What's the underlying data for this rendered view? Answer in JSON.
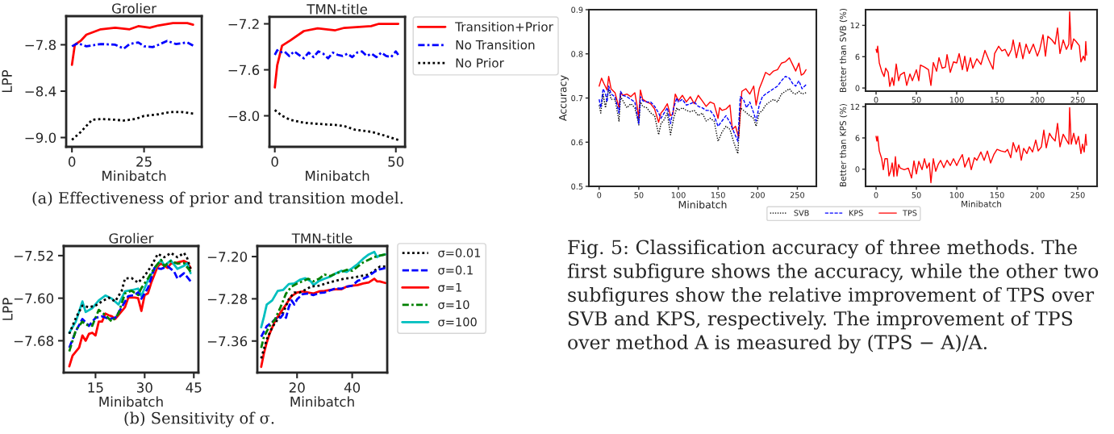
{
  "chart_data": [
    {
      "type": "line",
      "title": "Grolier",
      "xlabel": "Minibatch",
      "ylabel": "LPP",
      "xlim": [
        -2,
        45
      ],
      "ylim": [
        -9.12,
        -7.43
      ],
      "xticks": [
        0,
        25
      ],
      "yticks": [
        {
          "value": -7.8,
          "label": "−7.8"
        },
        {
          "value": -8.4,
          "label": "−8.4"
        },
        {
          "value": -9.0,
          "label": "−9.0"
        }
      ],
      "annotations": [
        "(a) Effectiveness of prior and transition model."
      ],
      "series": [
        {
          "color": "#ff0000",
          "line_style": "solid",
          "x": [
            0,
            1,
            3,
            5,
            10,
            15,
            20,
            23,
            27,
            30,
            35,
            40,
            42
          ],
          "values": [
            -8.06,
            -7.8,
            -7.75,
            -7.67,
            -7.6,
            -7.58,
            -7.6,
            -7.56,
            -7.58,
            -7.55,
            -7.52,
            -7.52,
            -7.54
          ]
        },
        {
          "color": "#0000ff",
          "line_style": "dashdot",
          "x": [
            0,
            2,
            5,
            10,
            15,
            18,
            20,
            23,
            25,
            28,
            30,
            33,
            36,
            40,
            42
          ],
          "values": [
            -7.82,
            -7.78,
            -7.82,
            -7.79,
            -7.8,
            -7.85,
            -7.79,
            -7.77,
            -7.82,
            -7.83,
            -7.8,
            -7.75,
            -7.79,
            -7.77,
            -7.81
          ]
        },
        {
          "color": "#000000",
          "line_style": "dotted",
          "x": [
            0,
            3,
            7,
            10,
            15,
            18,
            22,
            25,
            30,
            34,
            38,
            42
          ],
          "values": [
            -9.03,
            -8.93,
            -8.77,
            -8.76,
            -8.77,
            -8.78,
            -8.76,
            -8.72,
            -8.7,
            -8.67,
            -8.67,
            -8.69
          ]
        }
      ]
    },
    {
      "type": "line",
      "title": "TMN-title",
      "xlabel": "Minibatch",
      "xlim": [
        -2.2,
        53.8
      ],
      "ylim": [
        -8.27,
        -7.14
      ],
      "xticks": [
        0,
        50
      ],
      "yticks": [
        {
          "value": -7.2,
          "label": "−7.2"
        },
        {
          "value": -7.6,
          "label": "−7.6"
        },
        {
          "value": -8.0,
          "label": "−8.0"
        }
      ],
      "legend": "right",
      "series": [
        {
          "name": "Transition+Prior",
          "color": "#ff0000",
          "line_style": "solid",
          "x": [
            0,
            1,
            3,
            6.4,
            12,
            17.7,
            25,
            28.7,
            39.8,
            43,
            51
          ],
          "values": [
            -7.754,
            -7.56,
            -7.39,
            -7.345,
            -7.263,
            -7.24,
            -7.256,
            -7.235,
            -7.22,
            -7.2,
            -7.2
          ]
        },
        {
          "name": "No Transition",
          "color": "#0000ff",
          "line_style": "dashdot",
          "x": [
            0,
            1,
            2,
            4,
            6,
            8,
            10,
            12,
            14,
            16,
            18,
            20,
            22,
            24,
            26,
            28,
            30,
            32,
            34,
            36,
            38,
            40,
            42,
            44,
            46,
            48,
            50,
            51
          ],
          "values": [
            -7.47,
            -7.43,
            -7.45,
            -7.44,
            -7.48,
            -7.44,
            -7.47,
            -7.5,
            -7.45,
            -7.49,
            -7.44,
            -7.46,
            -7.5,
            -7.45,
            -7.47,
            -7.48,
            -7.46,
            -7.49,
            -7.45,
            -7.44,
            -7.48,
            -7.46,
            -7.49,
            -7.45,
            -7.48,
            -7.49,
            -7.44,
            -7.47
          ]
        },
        {
          "name": "No Prior",
          "color": "#000000",
          "line_style": "dotted",
          "x": [
            0,
            3,
            6.4,
            12,
            17.7,
            25,
            28.7,
            33,
            40,
            45,
            51
          ],
          "values": [
            -7.95,
            -8.0,
            -8.035,
            -8.06,
            -8.07,
            -8.08,
            -8.09,
            -8.12,
            -8.14,
            -8.17,
            -8.21
          ]
        }
      ]
    },
    {
      "type": "line",
      "title": "Grolier",
      "xlabel": "Minibatch",
      "ylabel": "LPP",
      "xlim": [
        5.3,
        46.4
      ],
      "ylim": [
        -7.74,
        -7.502
      ],
      "xticks": [
        15,
        30,
        45
      ],
      "yticks": [
        {
          "value": -7.52,
          "label": "−7.52"
        },
        {
          "value": -7.6,
          "label": "−7.60"
        },
        {
          "value": -7.68,
          "label": "−7.68"
        }
      ],
      "annotations": [
        "(b) Sensitivity of σ."
      ],
      "series": [
        {
          "color": "#000000",
          "line_style": "dotted",
          "x": [
            7,
            9,
            11,
            13,
            15,
            17,
            19,
            21,
            23,
            24,
            26,
            28,
            30,
            32,
            34,
            36,
            38,
            40,
            42,
            43,
            44
          ],
          "values": [
            -7.667,
            -7.637,
            -7.614,
            -7.617,
            -7.614,
            -7.606,
            -7.599,
            -7.606,
            -7.586,
            -7.563,
            -7.562,
            -7.571,
            -7.558,
            -7.54,
            -7.517,
            -7.523,
            -7.515,
            -7.523,
            -7.515,
            -7.525,
            -7.545
          ]
        },
        {
          "color": "#0000ff",
          "line_style": "dashed",
          "x": [
            7,
            9,
            11,
            13,
            15,
            17,
            19,
            21,
            23,
            25,
            27,
            28,
            29,
            31,
            33,
            35,
            37,
            39,
            40,
            42,
            44
          ],
          "values": [
            -7.693,
            -7.662,
            -7.639,
            -7.652,
            -7.637,
            -7.634,
            -7.639,
            -7.637,
            -7.617,
            -7.596,
            -7.594,
            -7.589,
            -7.601,
            -7.581,
            -7.543,
            -7.545,
            -7.54,
            -7.55,
            -7.563,
            -7.553,
            -7.568
          ]
        },
        {
          "color": "#ff0000",
          "line_style": "solid",
          "x": [
            7,
            8,
            10,
            11,
            12,
            13,
            14,
            15,
            16,
            17,
            18,
            19,
            20,
            21,
            22,
            24,
            25,
            27,
            28,
            29,
            30,
            31,
            32,
            34,
            35,
            37,
            38,
            40,
            42,
            43,
            44
          ],
          "values": [
            -7.728,
            -7.708,
            -7.693,
            -7.67,
            -7.68,
            -7.667,
            -7.665,
            -7.67,
            -7.644,
            -7.644,
            -7.629,
            -7.632,
            -7.634,
            -7.639,
            -7.632,
            -7.617,
            -7.599,
            -7.599,
            -7.6,
            -7.624,
            -7.594,
            -7.591,
            -7.571,
            -7.54,
            -7.535,
            -7.543,
            -7.535,
            -7.533,
            -7.53,
            -7.533,
            -7.543
          ]
        },
        {
          "color": "#008000",
          "line_style": "dashdot",
          "x": [
            7,
            9,
            11,
            12,
            14,
            16,
            18,
            20,
            22,
            24,
            26,
            28,
            29,
            31,
            33,
            35,
            36,
            38,
            40,
            42,
            44
          ],
          "values": [
            -7.7,
            -7.66,
            -7.644,
            -7.65,
            -7.652,
            -7.622,
            -7.632,
            -7.644,
            -7.629,
            -7.591,
            -7.586,
            -7.594,
            -7.581,
            -7.563,
            -7.543,
            -7.528,
            -7.54,
            -7.53,
            -7.535,
            -7.534,
            -7.55
          ]
        },
        {
          "color": "#00bfbf",
          "line_style": "solid",
          "x": [
            7,
            9,
            11,
            12,
            14,
            16,
            18,
            20,
            22,
            24,
            26,
            28,
            29,
            31,
            33,
            35,
            36,
            38,
            40,
            42,
            43,
            44
          ],
          "values": [
            -7.665,
            -7.644,
            -7.606,
            -7.626,
            -7.619,
            -7.604,
            -7.595,
            -7.601,
            -7.612,
            -7.587,
            -7.585,
            -7.582,
            -7.596,
            -7.566,
            -7.545,
            -7.528,
            -7.539,
            -7.529,
            -7.545,
            -7.539,
            -7.534,
            -7.553
          ]
        }
      ]
    },
    {
      "type": "line",
      "title": "TMN-title",
      "xlabel": "Minibatch",
      "xlim": [
        5.6,
        52.7
      ],
      "ylim": [
        -7.42,
        -7.18
      ],
      "xticks": [
        20,
        40
      ],
      "yticks": [
        {
          "value": -7.2,
          "label": "−7.20"
        },
        {
          "value": -7.28,
          "label": "−7.28"
        },
        {
          "value": -7.36,
          "label": "−7.36"
        }
      ],
      "legend": "right",
      "series": [
        {
          "name": "σ=0.01",
          "color": "#000000",
          "line_style": "dotted",
          "x": [
            7,
            9,
            11,
            13,
            15,
            17,
            19,
            21,
            23,
            25,
            28,
            31,
            34,
            37,
            40,
            43,
            46,
            48,
            50,
            52
          ],
          "values": [
            -7.393,
            -7.357,
            -7.334,
            -7.319,
            -7.306,
            -7.281,
            -7.268,
            -7.268,
            -7.263,
            -7.257,
            -7.255,
            -7.25,
            -7.246,
            -7.242,
            -7.24,
            -7.237,
            -7.234,
            -7.227,
            -7.219,
            -7.219
          ]
        },
        {
          "name": "σ=0.1",
          "color": "#0000ff",
          "line_style": "dashed",
          "x": [
            7,
            9,
            11,
            13,
            14,
            15,
            16,
            17,
            18,
            19,
            20,
            22,
            24,
            26,
            28,
            30,
            32,
            34,
            36,
            38,
            40,
            42,
            44,
            46,
            48,
            50,
            52
          ],
          "values": [
            -7.352,
            -7.332,
            -7.324,
            -7.314,
            -7.316,
            -7.309,
            -7.316,
            -7.296,
            -7.283,
            -7.291,
            -7.281,
            -7.271,
            -7.27,
            -7.273,
            -7.269,
            -7.268,
            -7.264,
            -7.26,
            -7.261,
            -7.257,
            -7.255,
            -7.246,
            -7.242,
            -7.237,
            -7.229,
            -7.224,
            -7.222
          ]
        },
        {
          "name": "σ=1",
          "color": "#ff0000",
          "line_style": "solid",
          "x": [
            7,
            8,
            9,
            10,
            12,
            14,
            16,
            18,
            20,
            22,
            24,
            26,
            28,
            30,
            32,
            34,
            36,
            38,
            40,
            42,
            44,
            46,
            48,
            49,
            50,
            52
          ],
          "values": [
            -7.409,
            -7.383,
            -7.363,
            -7.347,
            -7.322,
            -7.306,
            -7.291,
            -7.275,
            -7.268,
            -7.266,
            -7.268,
            -7.27,
            -7.266,
            -7.265,
            -7.263,
            -7.262,
            -7.262,
            -7.257,
            -7.255,
            -7.254,
            -7.251,
            -7.249,
            -7.242,
            -7.247,
            -7.247,
            -7.25
          ]
        },
        {
          "name": "σ=10",
          "color": "#008000",
          "line_style": "dashdot",
          "x": [
            7,
            8,
            10,
            12,
            14,
            16,
            18,
            20,
            22,
            24,
            26,
            28,
            30,
            32,
            34,
            36,
            38,
            40,
            42,
            44,
            46,
            48,
            50,
            52
          ],
          "values": [
            -7.373,
            -7.352,
            -7.332,
            -7.319,
            -7.296,
            -7.27,
            -7.257,
            -7.251,
            -7.247,
            -7.242,
            -7.247,
            -7.242,
            -7.234,
            -7.237,
            -7.232,
            -7.229,
            -7.225,
            -7.227,
            -7.219,
            -7.211,
            -7.206,
            -7.201,
            -7.198,
            -7.196
          ]
        },
        {
          "name": "σ=100",
          "color": "#00bfbf",
          "line_style": "solid",
          "x": [
            7,
            8,
            9,
            11,
            13,
            15,
            17,
            19,
            21,
            23,
            25,
            26,
            28,
            30,
            32,
            34,
            36,
            38,
            40,
            42,
            44,
            46,
            48,
            49,
            50,
            52
          ],
          "values": [
            -7.334,
            -7.314,
            -7.291,
            -7.283,
            -7.265,
            -7.263,
            -7.252,
            -7.251,
            -7.244,
            -7.241,
            -7.247,
            -7.254,
            -7.246,
            -7.242,
            -7.238,
            -7.232,
            -7.227,
            -7.229,
            -7.222,
            -7.214,
            -7.204,
            -7.196,
            -7.191,
            -7.201,
            -7.198,
            -7.196
          ]
        }
      ]
    },
    {
      "type": "line",
      "xlabel": "Minibatch",
      "ylabel": "Accuracy",
      "xlim": [
        -13,
        274
      ],
      "ylim": [
        0.5,
        0.9
      ],
      "xticks": [
        0,
        50,
        100,
        150,
        200,
        250
      ],
      "yticks": [
        0.5,
        0.6,
        0.7,
        0.8,
        0.9
      ],
      "legend": "bottom",
      "annotations": [
        "Fig. 5: Classification accuracy of three methods. The first subfigure shows the accuracy, while the other two subfigures show the relative improvement of TPS over SVB and KPS, respectively. The improvement of TPS over method A is measured by (TPS − A)/A."
      ],
      "series": [
        {
          "name": "SVB",
          "color": "#000000",
          "line_style": "dotted",
          "x": [
            0,
            2,
            5,
            8,
            10,
            12,
            15,
            20,
            25,
            27,
            30,
            35,
            40,
            45,
            50,
            52,
            55,
            60,
            65,
            70,
            75,
            78,
            82,
            86,
            90,
            94,
            98,
            100,
            105,
            110,
            115,
            120,
            125,
            130,
            135,
            140,
            145,
            150,
            155,
            160,
            165,
            170,
            175,
            178,
            182,
            186,
            190,
            195,
            198,
            202,
            206,
            210,
            215,
            220,
            225,
            230,
            235,
            240,
            244,
            248,
            252,
            256,
            261
          ],
          "values": [
            0.684,
            0.666,
            0.709,
            0.678,
            0.703,
            0.721,
            0.697,
            0.697,
            0.648,
            0.703,
            0.694,
            0.678,
            0.687,
            0.678,
            0.639,
            0.691,
            0.681,
            0.678,
            0.666,
            0.66,
            0.617,
            0.642,
            0.651,
            0.666,
            0.617,
            0.654,
            0.678,
            0.672,
            0.678,
            0.672,
            0.669,
            0.672,
            0.66,
            0.666,
            0.648,
            0.654,
            0.648,
            0.602,
            0.623,
            0.636,
            0.629,
            0.599,
            0.574,
            0.678,
            0.672,
            0.666,
            0.66,
            0.654,
            0.636,
            0.666,
            0.672,
            0.684,
            0.691,
            0.697,
            0.691,
            0.709,
            0.715,
            0.721,
            0.712,
            0.709,
            0.715,
            0.709,
            0.712
          ]
        },
        {
          "name": "KPS",
          "color": "#0000ff",
          "line_style": "dashed",
          "x": [
            0,
            2,
            5,
            8,
            10,
            12,
            15,
            20,
            25,
            27,
            30,
            35,
            40,
            45,
            50,
            52,
            55,
            60,
            65,
            70,
            75,
            78,
            82,
            86,
            90,
            94,
            98,
            100,
            105,
            110,
            115,
            120,
            125,
            130,
            135,
            140,
            145,
            150,
            155,
            160,
            165,
            170,
            175,
            178,
            182,
            186,
            190,
            195,
            198,
            202,
            206,
            210,
            215,
            220,
            225,
            230,
            235,
            240,
            244,
            248,
            252,
            256,
            261
          ],
          "values": [
            0.697,
            0.678,
            0.721,
            0.709,
            0.691,
            0.727,
            0.709,
            0.703,
            0.666,
            0.715,
            0.706,
            0.703,
            0.697,
            0.691,
            0.642,
            0.703,
            0.694,
            0.691,
            0.691,
            0.681,
            0.666,
            0.654,
            0.666,
            0.678,
            0.642,
            0.678,
            0.7,
            0.691,
            0.697,
            0.684,
            0.687,
            0.691,
            0.681,
            0.678,
            0.672,
            0.672,
            0.66,
            0.636,
            0.648,
            0.66,
            0.645,
            0.623,
            0.602,
            0.703,
            0.697,
            0.678,
            0.691,
            0.666,
            0.648,
            0.684,
            0.703,
            0.709,
            0.715,
            0.721,
            0.727,
            0.739,
            0.749,
            0.745,
            0.733,
            0.727,
            0.739,
            0.721,
            0.73
          ]
        },
        {
          "name": "TPS",
          "color": "#ff0000",
          "line_style": "solid",
          "x": [
            0,
            3,
            6,
            10,
            12,
            15,
            20,
            25,
            27,
            30,
            35,
            40,
            45,
            48,
            50,
            52,
            55,
            60,
            65,
            70,
            75,
            78,
            82,
            86,
            90,
            93,
            96,
            100,
            105,
            110,
            115,
            120,
            125,
            130,
            135,
            140,
            145,
            150,
            152,
            155,
            160,
            165,
            168,
            172,
            176,
            180,
            185,
            190,
            195,
            198,
            202,
            206,
            210,
            215,
            220,
            225,
            230,
            235,
            240,
            244,
            248,
            252,
            255,
            258,
            261
          ],
          "values": [
            0.727,
            0.745,
            0.733,
            0.718,
            0.749,
            0.721,
            0.712,
            0.678,
            0.712,
            0.706,
            0.709,
            0.703,
            0.712,
            0.681,
            0.654,
            0.718,
            0.697,
            0.691,
            0.687,
            0.675,
            0.645,
            0.666,
            0.675,
            0.687,
            0.66,
            0.663,
            0.709,
            0.694,
            0.706,
            0.691,
            0.703,
            0.687,
            0.706,
            0.694,
            0.681,
            0.691,
            0.687,
            0.654,
            0.678,
            0.672,
            0.675,
            0.684,
            0.629,
            0.636,
            0.611,
            0.715,
            0.721,
            0.709,
            0.727,
            0.684,
            0.721,
            0.739,
            0.758,
            0.752,
            0.761,
            0.764,
            0.779,
            0.782,
            0.791,
            0.776,
            0.761,
            0.779,
            0.752,
            0.755,
            0.764
          ]
        }
      ]
    },
    {
      "type": "line",
      "ylabel": "Better than SVB (%)",
      "xlim": [
        -13,
        274
      ],
      "ylim": [
        -0.6,
        15
      ],
      "xticks": [
        0,
        50,
        100,
        150,
        200,
        250
      ],
      "yticks": [
        0,
        6,
        12
      ],
      "series": [
        {
          "color": "#ff0000",
          "line_style": "solid",
          "x": [
            0,
            1,
            2,
            4,
            7,
            10,
            12,
            15,
            17,
            20,
            22,
            25,
            28,
            30,
            35,
            38,
            42,
            45,
            50,
            53,
            55,
            60,
            65,
            68,
            71,
            75,
            78,
            82,
            86,
            88,
            92,
            96,
            100,
            103,
            107,
            110,
            113,
            117,
            120,
            125,
            130,
            135,
            140,
            145,
            147,
            152,
            156,
            160,
            164,
            168,
            170,
            174,
            178,
            182,
            186,
            190,
            195,
            200,
            203,
            207,
            210,
            213,
            218,
            222,
            225,
            228,
            232,
            236,
            239,
            240,
            242,
            245,
            248,
            252,
            254,
            257,
            259,
            260,
            261
          ],
          "values": [
            7.4,
            6.8,
            8.0,
            4.8,
            3.2,
            2.2,
            3.8,
            3.0,
            0.3,
            2.0,
            0.5,
            4.6,
            1.4,
            2.5,
            3.0,
            0.5,
            2.7,
            1.4,
            3.5,
            1.4,
            4.4,
            4.0,
            3.5,
            0.5,
            4.9,
            3.2,
            5.8,
            3.8,
            4.0,
            6.4,
            3.0,
            5.0,
            4.8,
            6.6,
            3.5,
            6.1,
            3.2,
            5.8,
            3.8,
            5.6,
            4.5,
            7.2,
            5.3,
            3.6,
            6.6,
            8.0,
            7.1,
            7.4,
            6.1,
            7.4,
            9.2,
            5.8,
            8.7,
            5.6,
            8.4,
            6.6,
            8.4,
            6.1,
            7.4,
            10.2,
            6.1,
            9.9,
            9.2,
            8.4,
            11.5,
            6.6,
            9.2,
            7.4,
            8.4,
            14.6,
            7.4,
            9.4,
            8.9,
            8.1,
            5.0,
            6.1,
            5.3,
            8.9,
            6.3
          ]
        }
      ]
    },
    {
      "type": "line",
      "xlabel": "Minibatch",
      "ylabel": "Better than KPS (%)",
      "xlim": [
        -13,
        274
      ],
      "ylim": [
        -3.3,
        12.5
      ],
      "xticks": [
        0,
        50,
        100,
        150,
        200,
        250
      ],
      "yticks": [
        0,
        6,
        12
      ],
      "series": [
        {
          "color": "#ff0000",
          "line_style": "solid",
          "x": [
            0,
            1,
            2,
            4,
            7,
            9,
            11,
            14,
            16,
            18,
            20,
            22,
            24,
            26,
            28,
            30,
            35,
            40,
            44,
            47,
            50,
            53,
            57,
            60,
            63,
            66,
            68,
            71,
            74,
            77,
            80,
            84,
            88,
            92,
            96,
            100,
            103,
            107,
            110,
            115,
            118,
            122,
            125,
            130,
            134,
            138,
            142,
            146,
            150,
            155,
            160,
            163,
            167,
            170,
            174,
            177,
            180,
            183,
            187,
            190,
            194,
            198,
            201,
            205,
            208,
            211,
            215,
            218,
            222,
            225,
            228,
            232,
            236,
            239,
            240,
            242,
            245,
            248,
            251,
            254,
            256,
            258,
            260,
            261
          ],
          "values": [
            6.3,
            5.4,
            6.3,
            3.5,
            2.0,
            -0.1,
            2.0,
            2.0,
            -1.3,
            -0.4,
            1.2,
            -1.4,
            2.4,
            -1.3,
            0.9,
            0.2,
            -0.1,
            0.2,
            -1.7,
            1.6,
            -0.9,
            1.5,
            -0.1,
            2.0,
            0.2,
            1.2,
            -2.6,
            2.0,
            -0.4,
            0.9,
            1.7,
            0.3,
            1.7,
            0.7,
            2.0,
            0.7,
            1.7,
            2.8,
            0.4,
            2.2,
            -0.1,
            2.2,
            1.7,
            3.3,
            1.7,
            3.5,
            1.2,
            2.8,
            3.8,
            3.5,
            3.3,
            3.8,
            2.2,
            5.1,
            3.3,
            4.6,
            1.7,
            4.0,
            3.0,
            4.3,
            3.3,
            5.6,
            3.5,
            4.3,
            7.5,
            4.1,
            6.9,
            6.1,
            5.4,
            8.8,
            4.3,
            6.7,
            5.6,
            4.8,
            11.8,
            4.8,
            6.9,
            4.8,
            6.3,
            3.0,
            4.8,
            3.3,
            6.7,
            4.6
          ]
        }
      ]
    }
  ]
}
